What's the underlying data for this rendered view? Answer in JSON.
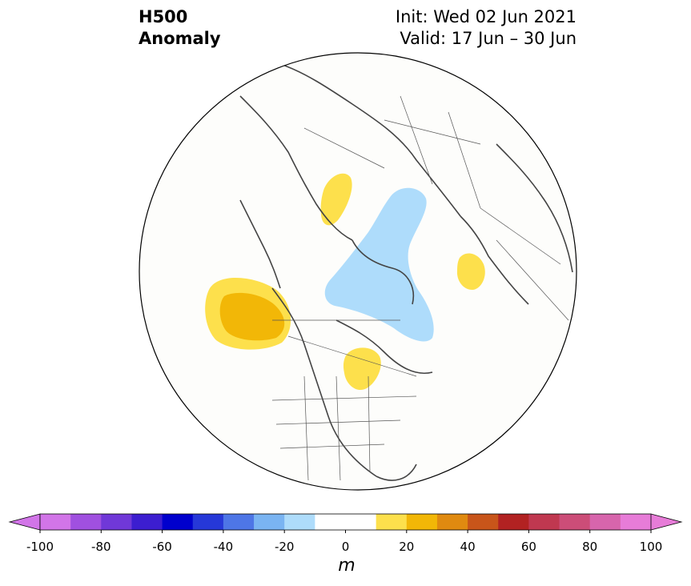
{
  "title": {
    "left_line1": "H500",
    "left_line2": "Anomaly",
    "right_line1": "Init: Wed 02 Jun 2021",
    "right_line2": "Valid: 17 Jun – 30 Jun"
  },
  "colorbar": {
    "units": "m",
    "ticks": [
      "-100",
      "-80",
      "-60",
      "-40",
      "-20",
      "0",
      "20",
      "40",
      "60",
      "80",
      "100"
    ],
    "colors": [
      "#d275e8",
      "#a050e0",
      "#7038d8",
      "#3c1ed0",
      "#0000cd",
      "#2638d8",
      "#4e76e6",
      "#7ab4f2",
      "#aedcfb",
      "#ffffff",
      "#ffffff",
      "#fde04c",
      "#f2b707",
      "#e08a10",
      "#c8551a",
      "#b22222",
      "#c03850",
      "#cc4d78",
      "#d765ac",
      "#e77cd8"
    ]
  },
  "anomaly_colors": {
    "positive_light": "#fde04c",
    "positive_strong": "#f2b707",
    "negative_light": "#aedcfb"
  }
}
